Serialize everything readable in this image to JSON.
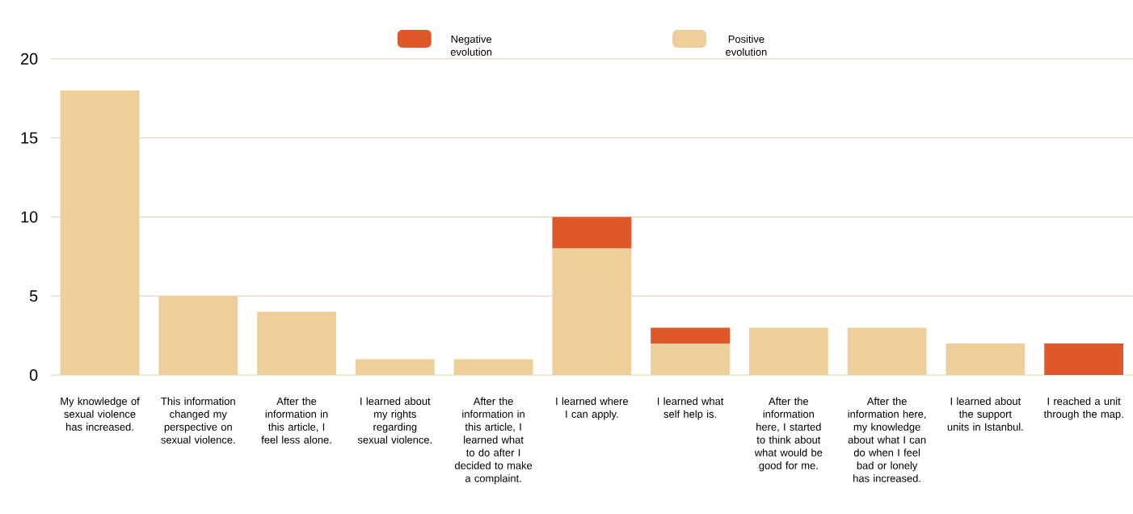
{
  "chart_data": {
    "type": "bar",
    "stacked": true,
    "legend": "top",
    "grid": "y",
    "categories": [
      "My knowledge of sexual violence has increased.",
      "This information changed my perspective on sexual violence.",
      "After the information in this article, I feel less alone.",
      "I learned about my rights regarding sexual violence.",
      "After the information in this article, I learned what to do after I decided to make a complaint.",
      "I learned where I can apply.",
      "I learned what self help is.",
      "After the information here, I started to think about what would be good for me.",
      "After the information here, my knowledge about what I can do when I feel bad or lonely has increased.",
      "I learned about the support units in Istanbul.",
      "I reached a unit through the map."
    ],
    "series": [
      {
        "name": "Positive evolution",
        "color": "#eecf9b",
        "values": [
          18,
          5,
          4,
          1,
          1,
          8,
          2,
          3,
          3,
          2,
          0
        ]
      },
      {
        "name": "Negative evolution",
        "color": "#de5829",
        "values": [
          0,
          0,
          0,
          0,
          0,
          2,
          1,
          0,
          0,
          0,
          2
        ]
      }
    ],
    "ylim": [
      0,
      20
    ],
    "yticks": [
      0,
      5,
      10,
      15,
      20
    ]
  }
}
